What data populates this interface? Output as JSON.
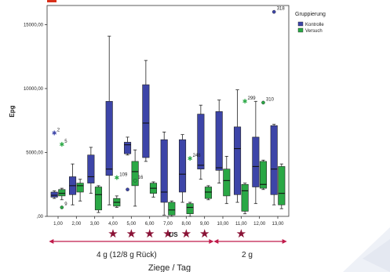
{
  "colors": {
    "kontrolle": "#3d45a8",
    "versuch": "#2aa845",
    "arrow": "#c01a4a",
    "star": "#8a1236",
    "plot_bg": "#ffffff",
    "accent_top": "#d9301a"
  },
  "chart_data": {
    "type": "boxplot",
    "title": "",
    "ylabel": "Epg",
    "xlabel": "Ziege / Tag",
    "ylim": [
      0,
      16500
    ],
    "yticks": [
      0,
      5000,
      10000,
      15000
    ],
    "ytick_labels": [
      ",00",
      "5000,00",
      "10000,00",
      "15000,00"
    ],
    "categories": [
      "1,00",
      "2,00",
      "3,00",
      "4,00",
      "5,00",
      "6,00",
      "7,00",
      "8,00",
      "9,00",
      "10,00",
      "11,00",
      "12,00",
      "13,00"
    ],
    "grid": false,
    "legend": {
      "title": "Gruppierung",
      "placement": "top-right",
      "entries": [
        "Kontrolle",
        "Versuch"
      ]
    },
    "series": [
      {
        "name": "Kontrolle",
        "boxes": [
          {
            "min": 1400,
            "q1": 1500,
            "median": 1650,
            "q3": 1900,
            "max": 2000
          },
          {
            "min": 900,
            "q1": 1700,
            "median": 2400,
            "q3": 3100,
            "max": 4100
          },
          {
            "min": 1800,
            "q1": 2600,
            "median": 3100,
            "q3": 4800,
            "max": 5400
          },
          {
            "min": 900,
            "q1": 3200,
            "median": 3700,
            "q3": 9000,
            "max": 14100
          },
          {
            "min": 4800,
            "q1": 4900,
            "median": 5600,
            "q3": 5800,
            "max": 6200
          },
          {
            "min": 4300,
            "q1": 4600,
            "median": 7300,
            "q3": 10300,
            "max": 12200
          },
          {
            "min": 100,
            "q1": 1100,
            "median": 1900,
            "q3": 6000,
            "max": 6600
          },
          {
            "min": 1100,
            "q1": 1900,
            "median": 3300,
            "q3": 6000,
            "max": 6400
          },
          {
            "min": 2900,
            "q1": 3700,
            "median": 4000,
            "q3": 8000,
            "max": 8700
          },
          {
            "min": 2600,
            "q1": 3600,
            "median": 3800,
            "q3": 8200,
            "max": 9100
          },
          {
            "min": 1100,
            "q1": 1700,
            "median": 5300,
            "q3": 7000,
            "max": 9900
          },
          {
            "min": 1000,
            "q1": 2300,
            "median": 3900,
            "q3": 6200,
            "max": 9000
          },
          {
            "min": 900,
            "q1": 1700,
            "median": 3700,
            "q3": 7100,
            "max": 7200
          }
        ],
        "outliers": [
          {
            "category": "1,00",
            "value": 6500,
            "label": "2",
            "marker": "star"
          },
          {
            "category": "5,00",
            "value": 2100,
            "label": "",
            "marker": "circle"
          },
          {
            "category": "13,00",
            "value": 16000,
            "label": "318",
            "marker": "circle"
          }
        ]
      },
      {
        "name": "Versuch",
        "boxes": [
          {
            "min": 1300,
            "q1": 1600,
            "median": 1800,
            "q3": 2100,
            "max": 2200
          },
          {
            "min": 1200,
            "q1": 1900,
            "median": 2400,
            "q3": 2600,
            "max": 2900
          },
          {
            "min": 300,
            "q1": 500,
            "median": 1700,
            "q3": 2300,
            "max": 2400
          },
          {
            "min": 700,
            "q1": 800,
            "median": 1100,
            "q3": 1400,
            "max": 1600
          },
          {
            "min": 800,
            "q1": 2400,
            "median": 3500,
            "q3": 4300,
            "max": 5200
          },
          {
            "min": 1500,
            "q1": 1800,
            "median": 2200,
            "q3": 2600,
            "max": 2700
          },
          {
            "min": 0,
            "q1": 100,
            "median": 500,
            "q3": 1100,
            "max": 1200
          },
          {
            "min": 0,
            "q1": 200,
            "median": 700,
            "q3": 1000,
            "max": 1100
          },
          {
            "min": 1300,
            "q1": 1400,
            "median": 1900,
            "q3": 2300,
            "max": 2400
          },
          {
            "min": 1000,
            "q1": 1600,
            "median": 2800,
            "q3": 3700,
            "max": 4700
          },
          {
            "min": 200,
            "q1": 400,
            "median": 2000,
            "q3": 2500,
            "max": 2600
          },
          {
            "min": 2100,
            "q1": 2200,
            "median": 2500,
            "q3": 4300,
            "max": 4400
          },
          {
            "min": 600,
            "q1": 900,
            "median": 1800,
            "q3": 3900,
            "max": 4100
          }
        ],
        "outliers": [
          {
            "category": "1,00",
            "value": 5600,
            "label": "5",
            "marker": "star"
          },
          {
            "category": "1,00",
            "value": 700,
            "label": "9",
            "marker": "circle"
          },
          {
            "category": "4,00",
            "value": 3000,
            "label": "109",
            "marker": "star"
          },
          {
            "category": "5,00",
            "value": 2800,
            "label": "16",
            "marker": "circle"
          },
          {
            "category": "8,00",
            "value": 4500,
            "label": "248",
            "marker": "star"
          },
          {
            "category": "11,00",
            "value": 9000,
            "label": "299",
            "marker": "star"
          },
          {
            "category": "12,00",
            "value": 8900,
            "label": "310",
            "marker": "circle"
          }
        ]
      }
    ],
    "annotations": {
      "stars_at": [
        "4,00",
        "5,00",
        "6,00",
        "7,00",
        "8,00",
        "9,00",
        "11,00"
      ],
      "unit_label": "US",
      "unit_label_at": "7,00",
      "arrow_left": {
        "from": "1,00",
        "to": "9,00",
        "label": "4 g (12/8 g Rück)"
      },
      "arrow_right": {
        "from": "10,00",
        "to": "13,00",
        "label": "2 g"
      }
    }
  }
}
